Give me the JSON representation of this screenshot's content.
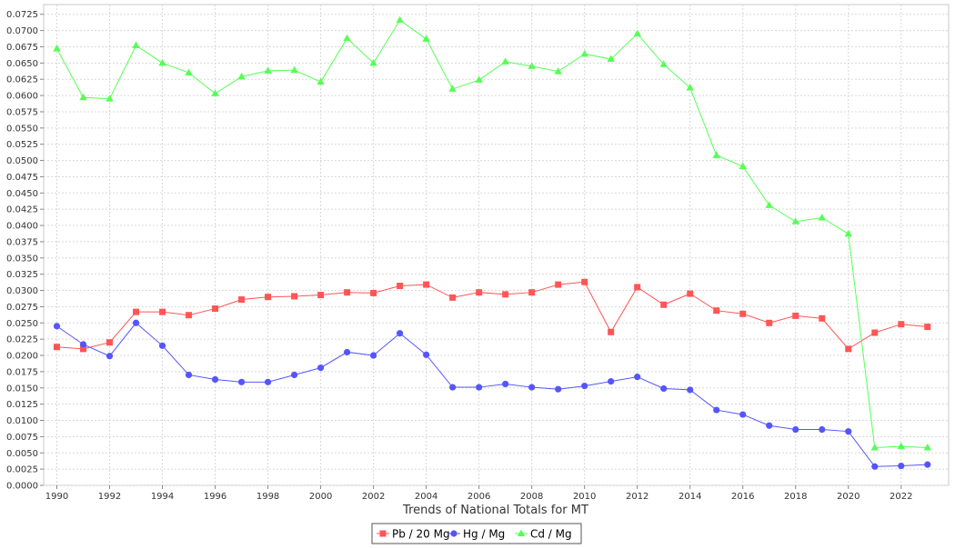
{
  "chart_data": {
    "type": "line",
    "title": "",
    "xlabel": "Trends of National Totals for MT",
    "ylabel": "",
    "xlim": [
      1989.5,
      2023.8
    ],
    "ylim": [
      0,
      0.074
    ],
    "grid": true,
    "legend_position": "bottom-center",
    "x_ticks": [
      "1990",
      "1992",
      "1994",
      "1996",
      "1998",
      "2000",
      "2002",
      "2004",
      "2006",
      "2008",
      "2010",
      "2012",
      "2014",
      "2016",
      "2018",
      "2020",
      "2022"
    ],
    "y_ticks": [
      "0.0000",
      "0.0025",
      "0.0050",
      "0.0075",
      "0.0100",
      "0.0125",
      "0.0150",
      "0.0175",
      "0.0200",
      "0.0225",
      "0.0250",
      "0.0275",
      "0.0300",
      "0.0325",
      "0.0350",
      "0.0375",
      "0.0400",
      "0.0425",
      "0.0450",
      "0.0475",
      "0.0500",
      "0.0525",
      "0.0550",
      "0.0575",
      "0.0600",
      "0.0625",
      "0.0650",
      "0.0675",
      "0.0700",
      "0.0725"
    ],
    "x": [
      1990,
      1991,
      1992,
      1993,
      1994,
      1995,
      1996,
      1997,
      1998,
      1999,
      2000,
      2001,
      2002,
      2003,
      2004,
      2005,
      2006,
      2007,
      2008,
      2009,
      2010,
      2011,
      2012,
      2013,
      2014,
      2015,
      2016,
      2017,
      2018,
      2019,
      2020,
      2021,
      2022,
      2023
    ],
    "series": [
      {
        "name": "Pb / 20 Mg",
        "color": "#ff5555",
        "marker": "square",
        "values": [
          0.0213,
          0.021,
          0.022,
          0.0267,
          0.0267,
          0.0262,
          0.0272,
          0.0286,
          0.029,
          0.0291,
          0.0293,
          0.0297,
          0.0296,
          0.0307,
          0.0309,
          0.0289,
          0.0297,
          0.0294,
          0.0297,
          0.0309,
          0.0313,
          0.0236,
          0.0305,
          0.0278,
          0.0295,
          0.0269,
          0.0264,
          0.025,
          0.0261,
          0.0257,
          0.021,
          0.0235,
          0.0248,
          0.0244
        ]
      },
      {
        "name": "Hg / Mg",
        "color": "#5555ff",
        "marker": "circle",
        "values": [
          0.0245,
          0.0217,
          0.0199,
          0.025,
          0.0215,
          0.017,
          0.0163,
          0.0159,
          0.0159,
          0.017,
          0.0181,
          0.0205,
          0.02,
          0.0234,
          0.0201,
          0.0151,
          0.0151,
          0.0156,
          0.0151,
          0.0148,
          0.0153,
          0.016,
          0.0167,
          0.0149,
          0.0147,
          0.0116,
          0.0109,
          0.0092,
          0.0086,
          0.0086,
          0.0083,
          0.0029,
          0.003,
          0.0032
        ]
      },
      {
        "name": "Cd / Mg",
        "color": "#55ff55",
        "marker": "triangle",
        "values": [
          0.0672,
          0.0597,
          0.0595,
          0.0677,
          0.065,
          0.0635,
          0.0603,
          0.0629,
          0.0638,
          0.0639,
          0.0621,
          0.0688,
          0.065,
          0.0716,
          0.0687,
          0.061,
          0.0624,
          0.0652,
          0.0645,
          0.0637,
          0.0664,
          0.0656,
          0.0695,
          0.0648,
          0.0612,
          0.0508,
          0.0491,
          0.0431,
          0.0406,
          0.0412,
          0.0387,
          0.0058,
          0.006,
          0.0058
        ]
      }
    ]
  }
}
